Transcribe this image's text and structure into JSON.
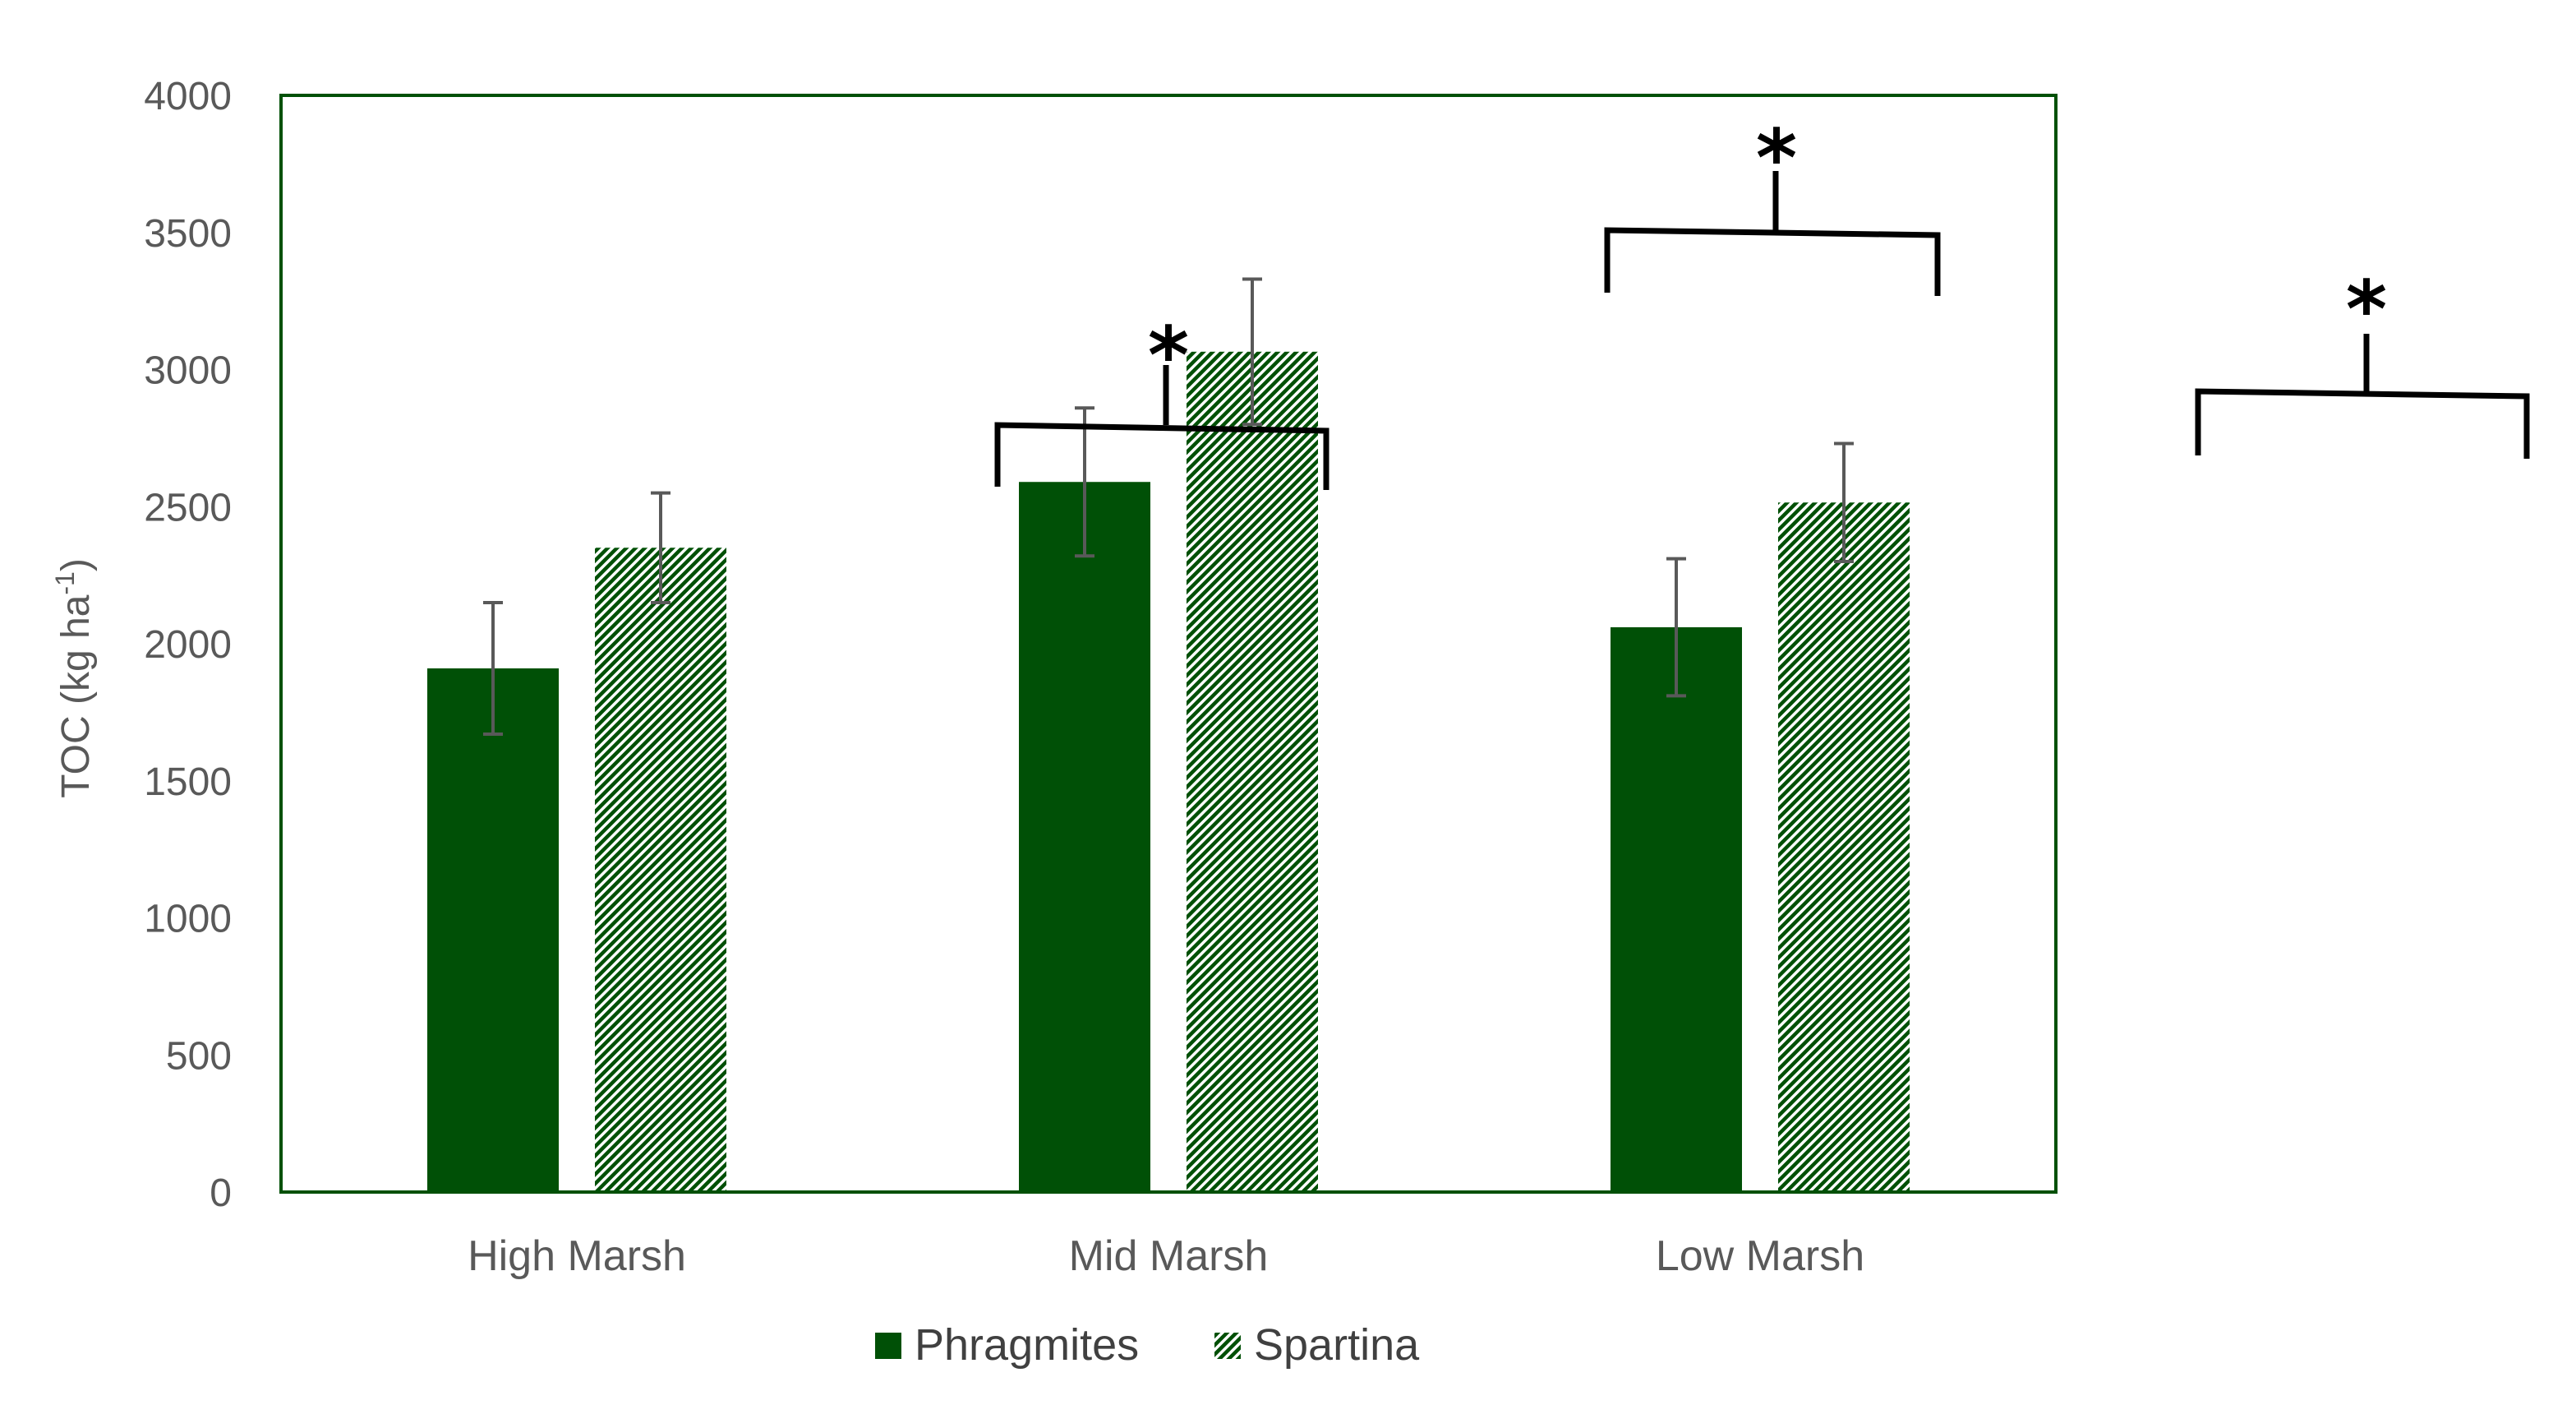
{
  "chart_data": {
    "type": "bar",
    "title": "",
    "xlabel": "",
    "ylabel": "TOC (kg ha",
    "ylabel_superscript": "-1",
    "ylabel_close": ")",
    "ylim": [
      0,
      4000
    ],
    "yticks": [
      "0",
      "500",
      "1000",
      "1500",
      "2000",
      "2500",
      "3000",
      "3500",
      "4000"
    ],
    "categories": [
      "High Marsh",
      "Mid Marsh",
      "Low Marsh"
    ],
    "series": [
      {
        "name": "Phragmites",
        "values": [
          1910,
          2590,
          2060
        ],
        "errors": [
          240,
          270,
          250
        ],
        "color": "#005006",
        "pattern": "solid"
      },
      {
        "name": "Spartina",
        "values": [
          2350,
          3065,
          2515
        ],
        "errors": [
          200,
          265,
          215
        ],
        "color": "#005006",
        "pattern": "diagonal-hatch"
      }
    ],
    "legend_position": "bottom",
    "annotations": [
      "*",
      "*",
      "*"
    ]
  },
  "colors": {
    "axis": "#005006",
    "error_bar": "#595959",
    "bracket": "#000000"
  }
}
